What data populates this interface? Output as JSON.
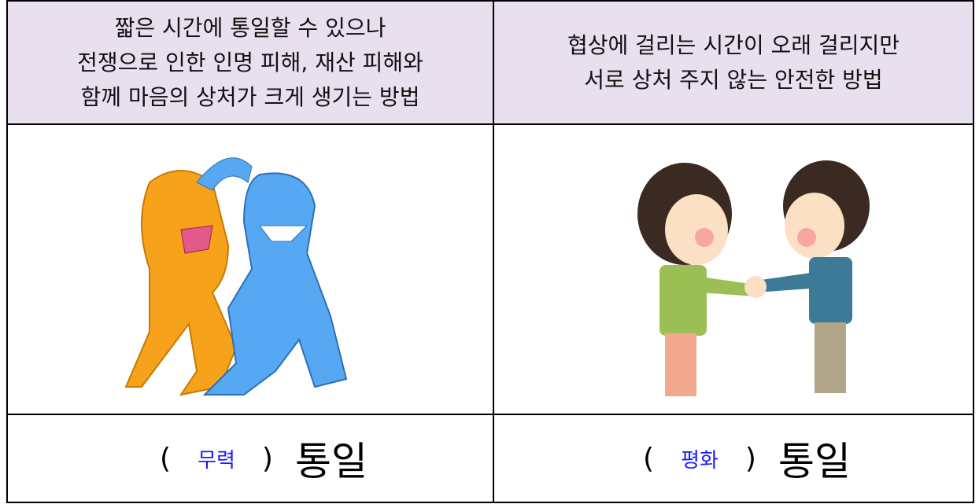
{
  "table": {
    "header": [
      [
        "짧은 시간에 통일할 수 있으나",
        "전쟁으로 인한 인명 피해, 재산 피해와",
        "함께 마음의 상처가 크게 생기는 방법"
      ],
      [
        "협상에 걸리는 시간이 오래 걸리지만",
        "서로 상처 주지 않는 안전한 방법"
      ]
    ],
    "answers": [
      {
        "open": "(",
        "answer": "무력",
        "close": ")",
        "word": "통일"
      },
      {
        "open": "(",
        "answer": "평화",
        "close": ")",
        "word": "통일"
      }
    ]
  }
}
